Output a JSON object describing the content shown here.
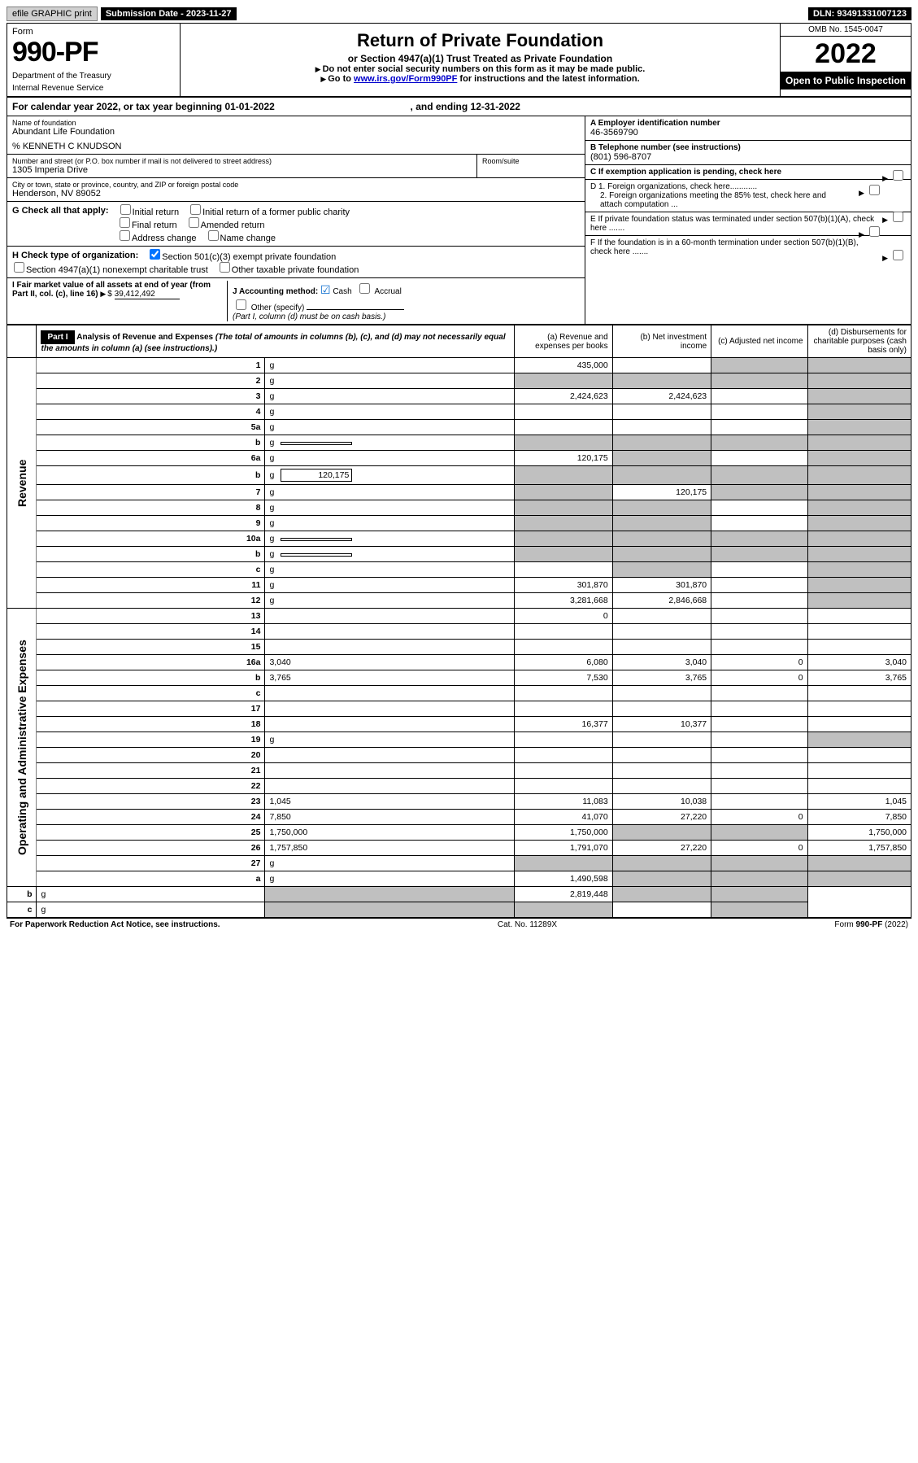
{
  "top": {
    "efile": "efile GRAPHIC print",
    "sub_label": "Submission Date - 2023-11-27",
    "dln": "DLN: 93491331007123"
  },
  "header": {
    "form": "Form",
    "number": "990-PF",
    "dept": "Department of the Treasury",
    "irs": "Internal Revenue Service",
    "title": "Return of Private Foundation",
    "subtitle": "or Section 4947(a)(1) Trust Treated as Private Foundation",
    "note1": "Do not enter social security numbers on this form as it may be made public.",
    "note2_pre": "Go to ",
    "note2_link": "www.irs.gov/Form990PF",
    "note2_post": " for instructions and the latest information.",
    "omb": "OMB No. 1545-0047",
    "year": "2022",
    "inspect": "Open to Public Inspection"
  },
  "cal": {
    "text_pre": "For calendar year 2022, or tax year beginning ",
    "start": "01-01-2022",
    "mid": " , and ending ",
    "end": "12-31-2022"
  },
  "info": {
    "name_label": "Name of foundation",
    "name": "Abundant Life Foundation",
    "care_of": "% KENNETH C KNUDSON",
    "addr_label": "Number and street (or P.O. box number if mail is not delivered to street address)",
    "addr": "1305 Imperia Drive",
    "room_label": "Room/suite",
    "city_label": "City or town, state or province, country, and ZIP or foreign postal code",
    "city": "Henderson, NV  89052",
    "ein_label": "A Employer identification number",
    "ein": "46-3569790",
    "tel_label": "B Telephone number (see instructions)",
    "tel": "(801) 596-8707",
    "c_label": "C If exemption application is pending, check here",
    "d1": "D 1. Foreign organizations, check here............",
    "d2": "2. Foreign organizations meeting the 85% test, check here and attach computation ...",
    "e": "E  If private foundation status was terminated under section 507(b)(1)(A), check here .......",
    "f": "F  If the foundation is in a 60-month termination under section 507(b)(1)(B), check here .......",
    "g_label": "G Check all that apply:",
    "g_opts": [
      "Initial return",
      "Initial return of a former public charity",
      "Final return",
      "Amended return",
      "Address change",
      "Name change"
    ],
    "h_label": "H Check type of organization:",
    "h1": "Section 501(c)(3) exempt private foundation",
    "h2": "Section 4947(a)(1) nonexempt charitable trust",
    "h3": "Other taxable private foundation",
    "i_label": "I Fair market value of all assets at end of year (from Part II, col. (c), line 16) ",
    "i_val": "39,412,492",
    "j_label": "J Accounting method:",
    "j_cash": "Cash",
    "j_accrual": "Accrual",
    "j_other": "Other (specify)",
    "j_note": "(Part I, column (d) must be on cash basis.)"
  },
  "part1": {
    "label": "Part I",
    "title": "Analysis of Revenue and Expenses",
    "subtitle": " (The total of amounts in columns (b), (c), and (d) may not necessarily equal the amounts in column (a) (see instructions).)",
    "col_a": "(a) Revenue and expenses per books",
    "col_b": "(b) Net investment income",
    "col_c": "(c) Adjusted net income",
    "col_d": "(d) Disbursements for charitable purposes (cash basis only)",
    "side_revenue": "Revenue",
    "side_expenses": "Operating and Administrative Expenses"
  },
  "rows": [
    {
      "n": "1",
      "d": "g",
      "a": "435,000",
      "b": "",
      "c": "g"
    },
    {
      "n": "2",
      "d": "g",
      "a": "g",
      "b": "g",
      "c": "g"
    },
    {
      "n": "3",
      "d": "g",
      "a": "2,424,623",
      "b": "2,424,623",
      "c": ""
    },
    {
      "n": "4",
      "d": "g",
      "a": "",
      "b": "",
      "c": ""
    },
    {
      "n": "5a",
      "d": "g",
      "a": "",
      "b": "",
      "c": ""
    },
    {
      "n": "b",
      "d": "g",
      "a": "g",
      "b": "g",
      "c": "g",
      "inline": ""
    },
    {
      "n": "6a",
      "d": "g",
      "a": "120,175",
      "b": "g",
      "c": ""
    },
    {
      "n": "b",
      "d": "g",
      "a": "g",
      "b": "g",
      "c": "g",
      "inline": "120,175"
    },
    {
      "n": "7",
      "d": "g",
      "a": "g",
      "b": "120,175",
      "c": "g"
    },
    {
      "n": "8",
      "d": "g",
      "a": "g",
      "b": "g",
      "c": ""
    },
    {
      "n": "9",
      "d": "g",
      "a": "g",
      "b": "g",
      "c": ""
    },
    {
      "n": "10a",
      "d": "g",
      "a": "g",
      "b": "g",
      "c": "g",
      "inline": ""
    },
    {
      "n": "b",
      "d": "g",
      "a": "g",
      "b": "g",
      "c": "g",
      "inline": ""
    },
    {
      "n": "c",
      "d": "g",
      "a": "",
      "b": "g",
      "c": ""
    },
    {
      "n": "11",
      "d": "g",
      "a": "301,870",
      "b": "301,870",
      "c": ""
    },
    {
      "n": "12",
      "d": "g",
      "a": "3,281,668",
      "b": "2,846,668",
      "c": ""
    },
    {
      "n": "13",
      "d": "",
      "a": "0",
      "b": "",
      "c": ""
    },
    {
      "n": "14",
      "d": "",
      "a": "",
      "b": "",
      "c": ""
    },
    {
      "n": "15",
      "d": "",
      "a": "",
      "b": "",
      "c": ""
    },
    {
      "n": "16a",
      "d": "3,040",
      "a": "6,080",
      "b": "3,040",
      "c": "0"
    },
    {
      "n": "b",
      "d": "3,765",
      "a": "7,530",
      "b": "3,765",
      "c": "0"
    },
    {
      "n": "c",
      "d": "",
      "a": "",
      "b": "",
      "c": ""
    },
    {
      "n": "17",
      "d": "",
      "a": "",
      "b": "",
      "c": ""
    },
    {
      "n": "18",
      "d": "",
      "a": "16,377",
      "b": "10,377",
      "c": ""
    },
    {
      "n": "19",
      "d": "g",
      "a": "",
      "b": "",
      "c": ""
    },
    {
      "n": "20",
      "d": "",
      "a": "",
      "b": "",
      "c": ""
    },
    {
      "n": "21",
      "d": "",
      "a": "",
      "b": "",
      "c": ""
    },
    {
      "n": "22",
      "d": "",
      "a": "",
      "b": "",
      "c": ""
    },
    {
      "n": "23",
      "d": "1,045",
      "a": "11,083",
      "b": "10,038",
      "c": ""
    },
    {
      "n": "24",
      "d": "7,850",
      "a": "41,070",
      "b": "27,220",
      "c": "0"
    },
    {
      "n": "25",
      "d": "1,750,000",
      "a": "1,750,000",
      "b": "g",
      "c": "g"
    },
    {
      "n": "26",
      "d": "1,757,850",
      "a": "1,791,070",
      "b": "27,220",
      "c": "0"
    },
    {
      "n": "27",
      "d": "g",
      "a": "g",
      "b": "g",
      "c": "g"
    },
    {
      "n": "a",
      "d": "g",
      "a": "1,490,598",
      "b": "g",
      "c": "g"
    },
    {
      "n": "b",
      "d": "g",
      "a": "g",
      "b": "2,819,448",
      "c": "g"
    },
    {
      "n": "c",
      "d": "g",
      "a": "g",
      "b": "g",
      "c": ""
    }
  ],
  "footer": {
    "left": "For Paperwork Reduction Act Notice, see instructions.",
    "mid": "Cat. No. 11289X",
    "right": "Form 990-PF (2022)"
  },
  "colors": {
    "grey": "#c0c0c0",
    "link": "#0000cc",
    "check": "#0066cc"
  }
}
